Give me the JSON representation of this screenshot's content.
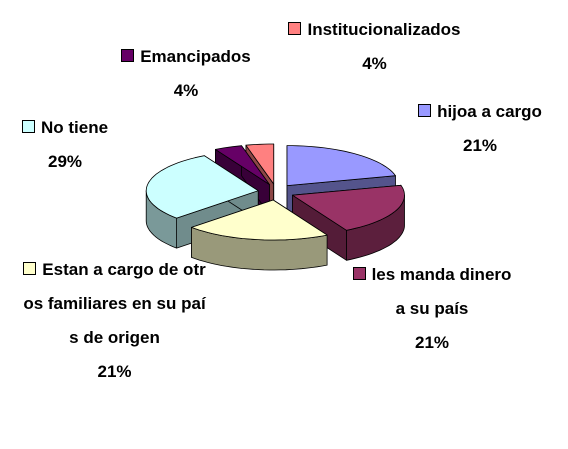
{
  "chart_data": {
    "type": "pie",
    "categories": [
      "hijoa a cargo",
      "les manda dinero a su país",
      "Estan a cargo de otros familiares en su país de origen",
      "No tiene",
      "Emancipados",
      "Institucionalizados"
    ],
    "values": [
      21,
      21,
      21,
      29,
      4,
      4
    ],
    "value_labels": [
      "21%",
      "21%",
      "21%",
      "29%",
      "4%",
      "4%"
    ],
    "colors": [
      "#9999ff",
      "#993366",
      "#ffffcc",
      "#ccffff",
      "#660066",
      "#ff8080"
    ]
  }
}
